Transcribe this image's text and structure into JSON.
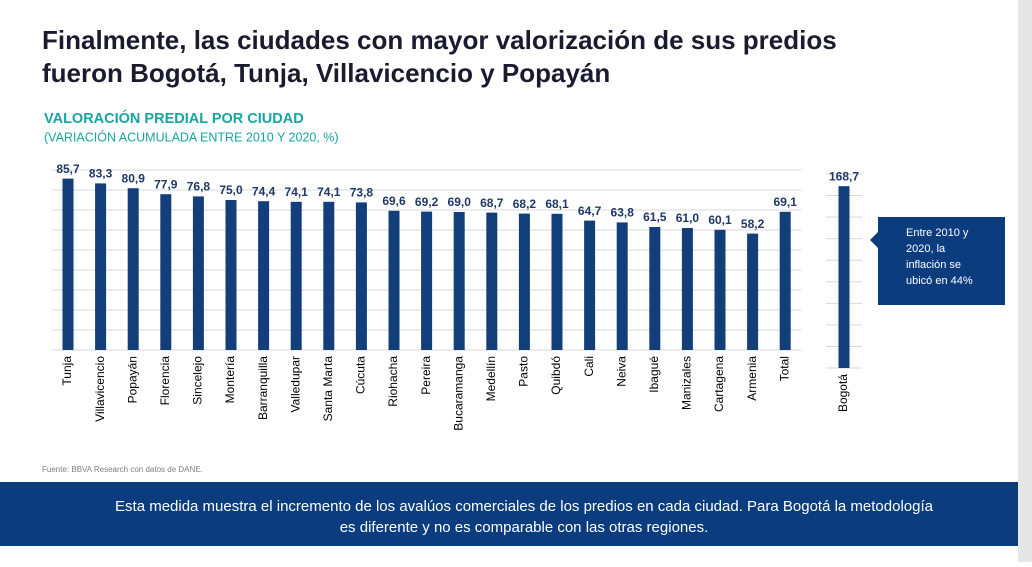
{
  "slide": {
    "title": [
      "Finalmente, las ciudades con mayor valorización de sus predios",
      "fueron Bogotá, Tunja, Villavicencio y Popayán"
    ],
    "source": "Fuente:  BBVA Research con datos de DANE.",
    "footer": [
      "Esta medida muestra el incremento de los avalúos comerciales de los predios en cada ciudad. Para Bogotá la metodología",
      "es diferente y no es comparable con las otras regiones."
    ]
  },
  "chart_data": [
    {
      "type": "bar",
      "title": "VALORACIÓN PREDIAL POR CIUDAD",
      "subtitle": "(VARIACIÓN ACUMULADA ENTRE 2010 Y 2020, %)",
      "categories": [
        "Tunja",
        "Villavicencio",
        "Popayán",
        "Florencia",
        "Sincelejo",
        "Montería",
        "Barranquilla",
        "Valledupar",
        "Santa Marta",
        "Cúcuta",
        "Riohacha",
        "Pereira",
        "Bucaramanga",
        "Medellín",
        "Pasto",
        "Quibdó",
        "Cali",
        "Neiva",
        "Ibagué",
        "Manizales",
        "Cartagena",
        "Armenia",
        "Total"
      ],
      "values": [
        85.7,
        83.3,
        80.9,
        77.9,
        76.8,
        75.0,
        74.4,
        74.1,
        74.1,
        73.8,
        69.6,
        69.2,
        69.0,
        68.7,
        68.2,
        68.1,
        64.7,
        63.8,
        61.5,
        61.0,
        60.1,
        58.2,
        69.1
      ],
      "value_labels": [
        "85,7",
        "83,3",
        "80,9",
        "77,9",
        "76,8",
        "75,0",
        "74,4",
        "74,1",
        "74,1",
        "73,8",
        "69,6",
        "69,2",
        "69,0",
        "68,7",
        "68,2",
        "68,1",
        "64,7",
        "63,8",
        "61,5",
        "61,0",
        "60,1",
        "58,2",
        "69,1"
      ],
      "color": "#123f7a",
      "ylim": [
        0,
        90
      ],
      "yticks": [
        0,
        10,
        20,
        30,
        40,
        50,
        60,
        70,
        80,
        90
      ],
      "grid": true
    },
    {
      "type": "bar",
      "categories": [
        "Bogotá"
      ],
      "values": [
        168.7
      ],
      "value_labels": [
        "168,7"
      ],
      "color": "#123f7a",
      "ylim": [
        0,
        180
      ],
      "yticks": [
        0,
        20,
        40,
        60,
        80,
        100,
        120,
        140,
        160,
        180
      ],
      "grid": true,
      "annotation": [
        "Entre 2010 y",
        "2020, la",
        "inflación se",
        "ubicó en 44%"
      ]
    }
  ]
}
